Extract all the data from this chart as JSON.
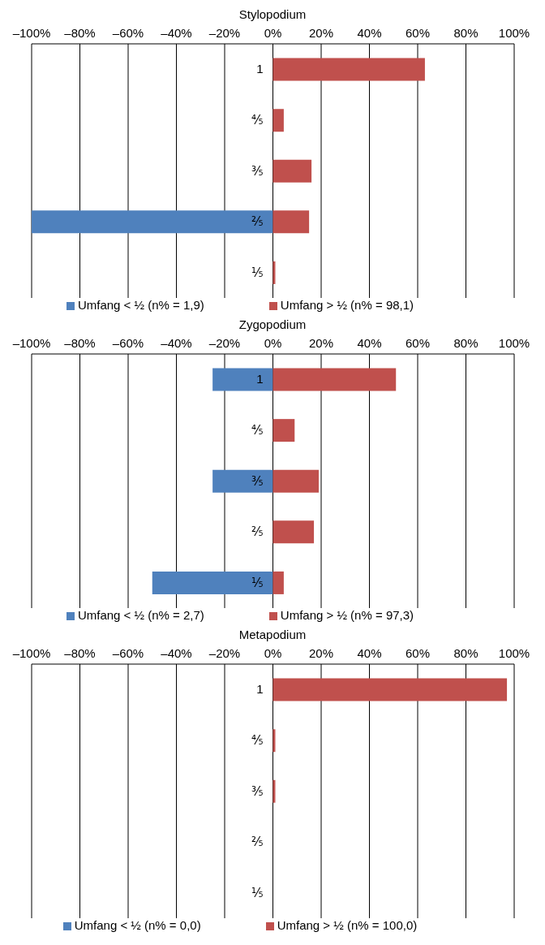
{
  "chart_data": [
    {
      "type": "bar",
      "title": "Stylopodium",
      "orientation": "horizontal",
      "stacked": true,
      "categories": [
        "1",
        "⅘",
        "⅗",
        "⅖",
        "⅕"
      ],
      "series": [
        {
          "name": "Umfang < ½ (n% = 1,9)",
          "color": "#4f81bd",
          "values": [
            0,
            0,
            0,
            -100,
            0
          ]
        },
        {
          "name": "Umfang > ½ (n% = 98,1)",
          "color": "#c0504d",
          "values": [
            63,
            4.5,
            16,
            15,
            1
          ]
        }
      ],
      "xlim": [
        -100,
        100
      ],
      "xticks": [
        {
          "value": -100,
          "label": "–100%"
        },
        {
          "value": -80,
          "label": "–80%"
        },
        {
          "value": -60,
          "label": "–60%"
        },
        {
          "value": -40,
          "label": "–40%"
        },
        {
          "value": -20,
          "label": "–20%"
        },
        {
          "value": 0,
          "label": "0%"
        },
        {
          "value": 20,
          "label": "20%"
        },
        {
          "value": 40,
          "label": "40%"
        },
        {
          "value": 60,
          "label": "60%"
        },
        {
          "value": 80,
          "label": "80%"
        },
        {
          "value": 100,
          "label": "100%"
        }
      ],
      "grid": "x",
      "legend": "bottom"
    },
    {
      "type": "bar",
      "title": "Zygopodium",
      "orientation": "horizontal",
      "stacked": true,
      "categories": [
        "1",
        "⅘",
        "⅗",
        "⅖",
        "⅕"
      ],
      "series": [
        {
          "name": "Umfang < ½ (n% = 2,7)",
          "color": "#4f81bd",
          "values": [
            -25,
            0,
            -25,
            0,
            -50
          ]
        },
        {
          "name": "Umfang > ½ (n% = 97,3)",
          "color": "#c0504d",
          "values": [
            51,
            9,
            19,
            17,
            4.5
          ]
        }
      ],
      "xlim": [
        -100,
        100
      ],
      "xticks": [
        {
          "value": -100,
          "label": "–100%"
        },
        {
          "value": -80,
          "label": "–80%"
        },
        {
          "value": -60,
          "label": "–60%"
        },
        {
          "value": -40,
          "label": "–40%"
        },
        {
          "value": -20,
          "label": "–20%"
        },
        {
          "value": 0,
          "label": "0%"
        },
        {
          "value": 20,
          "label": "20%"
        },
        {
          "value": 40,
          "label": "40%"
        },
        {
          "value": 60,
          "label": "60%"
        },
        {
          "value": 80,
          "label": "80%"
        },
        {
          "value": 100,
          "label": "100%"
        }
      ],
      "grid": "x",
      "legend": "bottom"
    },
    {
      "type": "bar",
      "title": "Metapodium",
      "orientation": "horizontal",
      "stacked": true,
      "categories": [
        "1",
        "⅘",
        "⅗",
        "⅖",
        "⅕"
      ],
      "series": [
        {
          "name": "Umfang < ½ (n% = 0,0)",
          "color": "#4f81bd",
          "values": [
            0,
            0,
            0,
            0,
            0
          ]
        },
        {
          "name": "Umfang > ½ (n% = 100,0)",
          "color": "#c0504d",
          "values": [
            97,
            1,
            1,
            0,
            0
          ]
        }
      ],
      "xlim": [
        -100,
        100
      ],
      "xticks": [
        {
          "value": -100,
          "label": "–100%"
        },
        {
          "value": -80,
          "label": "–80%"
        },
        {
          "value": -60,
          "label": "–60%"
        },
        {
          "value": -40,
          "label": "–40%"
        },
        {
          "value": -20,
          "label": "–20%"
        },
        {
          "value": 0,
          "label": "0%"
        },
        {
          "value": 20,
          "label": "20%"
        },
        {
          "value": 40,
          "label": "40%"
        },
        {
          "value": 60,
          "label": "60%"
        },
        {
          "value": 80,
          "label": "80%"
        },
        {
          "value": 100,
          "label": "100%"
        }
      ],
      "grid": "x",
      "legend": "bottom"
    }
  ]
}
